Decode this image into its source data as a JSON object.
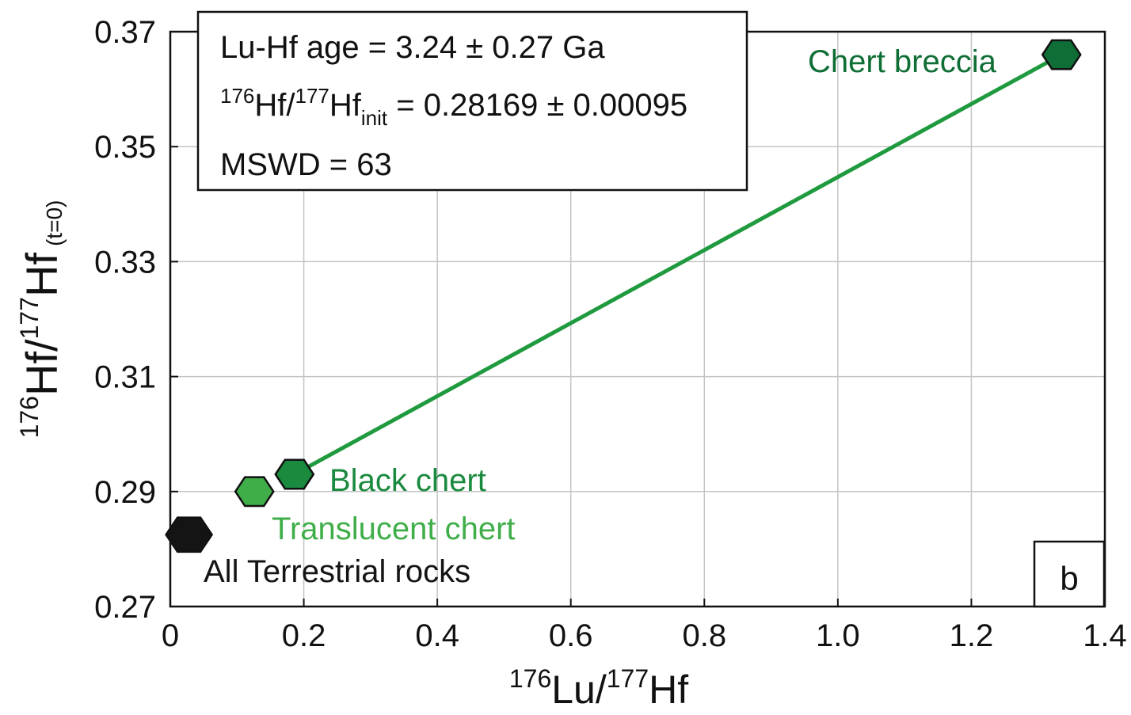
{
  "chart_data": {
    "type": "scatter",
    "xlabel": {
      "sup1": "176",
      "base1": "Lu/",
      "sup2": "177",
      "base2": "Hf"
    },
    "ylabel": {
      "sup1": "176",
      "base1": "Hf/",
      "sup2": "177",
      "base2": "Hf",
      "sub": "(t=0)"
    },
    "xlim": [
      0,
      1.4
    ],
    "ylim": [
      0.27,
      0.37
    ],
    "xticks": [
      "0",
      "0.2",
      "0.4",
      "0.6",
      "0.8",
      "1.0",
      "1.2",
      "1.4"
    ],
    "xtick_values": [
      0,
      0.2,
      0.4,
      0.6,
      0.8,
      1.0,
      1.2,
      1.4
    ],
    "yticks": [
      "0.27",
      "0.29",
      "0.31",
      "0.33",
      "0.35",
      "0.37"
    ],
    "ytick_values": [
      0.27,
      0.29,
      0.31,
      0.33,
      0.35,
      0.37
    ],
    "grid": true,
    "points": [
      {
        "name": "All Terrestrial rocks",
        "x": 0.028,
        "y": 0.2825,
        "color": "#141414",
        "label_color": "#141414"
      },
      {
        "name": "Translucent chert",
        "x": 0.126,
        "y": 0.29,
        "color": "#3fae49",
        "label_color": "#3fae49"
      },
      {
        "name": "Black chert",
        "x": 0.186,
        "y": 0.293,
        "color": "#1a8a3e",
        "label_color": "#1a8a3e"
      },
      {
        "name": "Chert breccia",
        "x": 1.335,
        "y": 0.366,
        "color": "#0f6e35",
        "label_color": "#0f6e35"
      }
    ],
    "isochron": {
      "x": [
        0.186,
        1.335
      ],
      "y": [
        0.293,
        0.366
      ],
      "color": "#1f9a3e"
    },
    "stats": {
      "line1": "Lu-Hf age = 3.24 ± 0.27 Ga",
      "line2_sup1": "176",
      "line2_base1": "Hf/",
      "line2_sup2": "177",
      "line2_base2": "Hf",
      "line2_sub": "init",
      "line2_rest": " = 0.28169 ± 0.00095",
      "line3": "MSWD = 63"
    },
    "panel_label": "b"
  }
}
